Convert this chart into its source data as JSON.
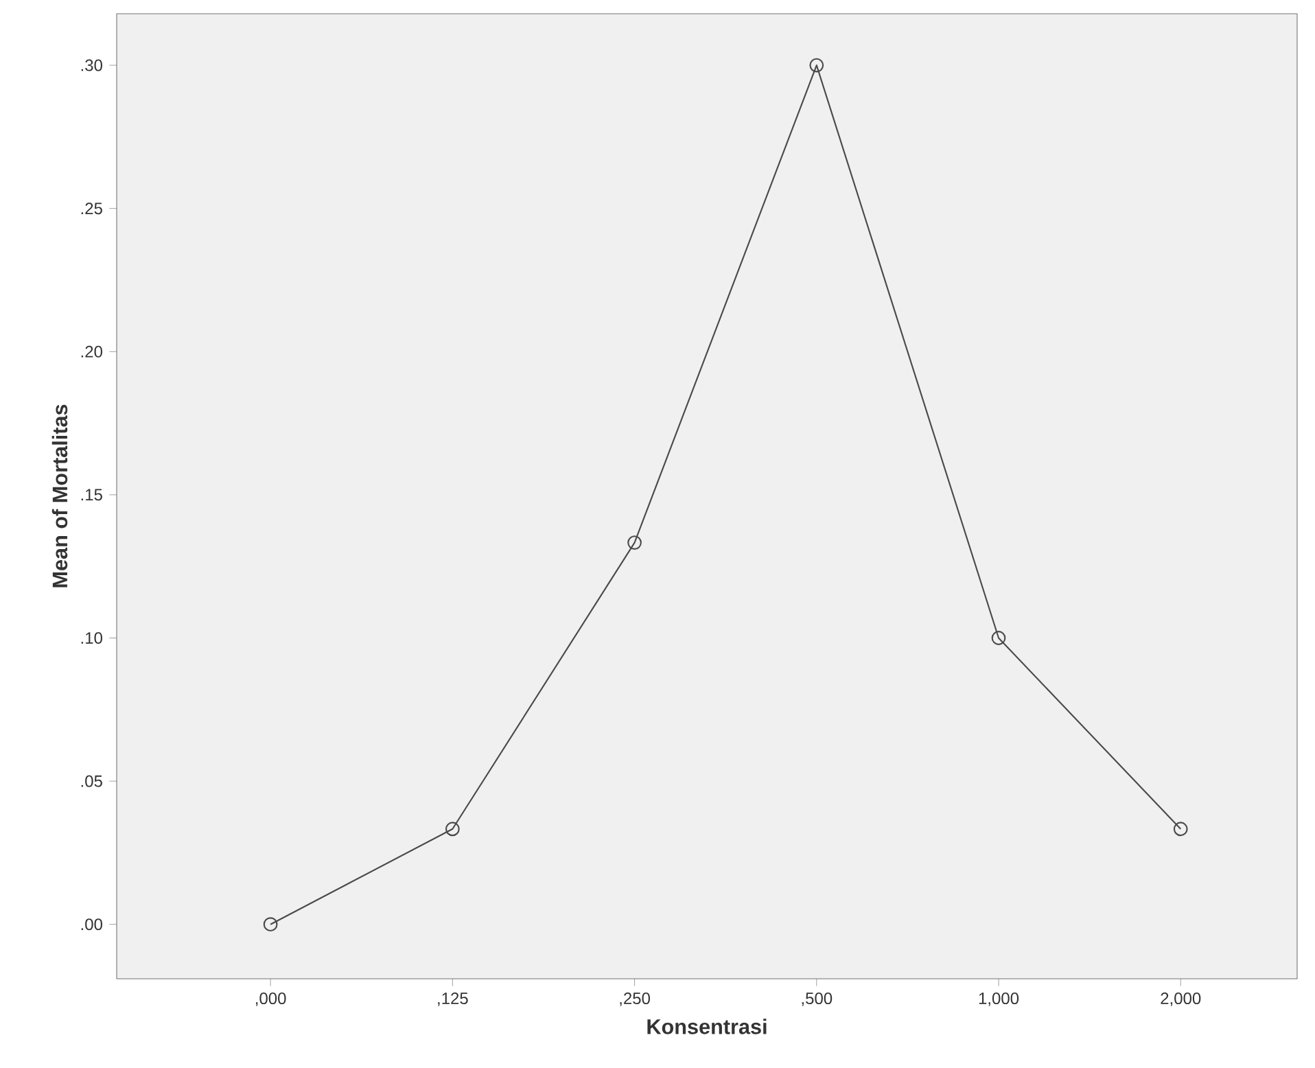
{
  "chart_data": {
    "type": "line",
    "xlabel": "Konsentrasi",
    "ylabel": "Mean of Mortalitas",
    "categories": [
      ",000",
      ",125",
      ",250",
      ",500",
      "1,000",
      "2,000"
    ],
    "values": [
      0,
      0.0333,
      0.1333,
      0.3,
      0.1,
      0.0333
    ],
    "color": "#4a4a4a",
    "marker": "circle",
    "line_style": "solid",
    "grid": false,
    "ylim": [
      -0.019,
      0.318
    ],
    "yticks": [
      {
        "value": 0,
        "label": ".00"
      },
      {
        "value": 0.05,
        "label": ".05"
      },
      {
        "value": 0.1,
        "label": ".10"
      },
      {
        "value": 0.15,
        "label": ".15"
      },
      {
        "value": 0.2,
        "label": ".20"
      },
      {
        "value": 0.25,
        "label": ".25"
      },
      {
        "value": 0.3,
        "label": ".30"
      }
    ]
  }
}
